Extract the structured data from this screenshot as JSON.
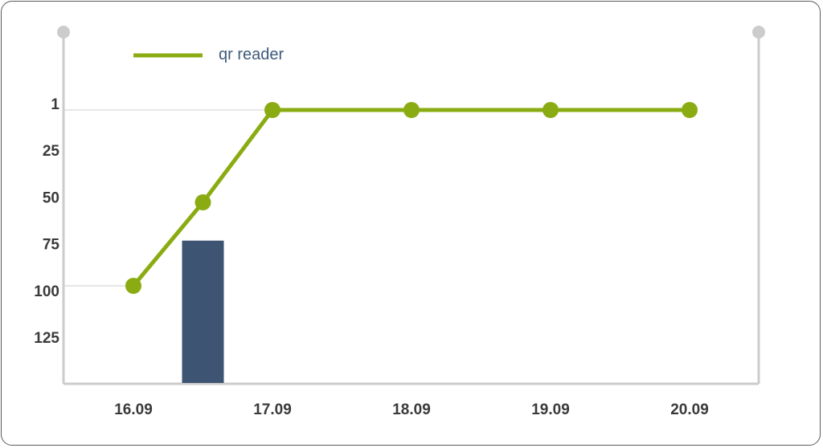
{
  "chart_data": {
    "type": "line",
    "categories": [
      "16.09",
      "17.09",
      "18.09",
      "19.09",
      "20.09"
    ],
    "y_ticks": [
      "1",
      "25",
      "50",
      "75",
      "100",
      "125"
    ],
    "y_reversed": true,
    "ylim": [
      1,
      125
    ],
    "grid_lines_at": [
      1,
      100
    ],
    "legend": {
      "position": "top-left",
      "label": "qr reader"
    },
    "series": [
      {
        "name": "qr reader",
        "x": [
          16.0,
          16.5,
          17.0,
          18.0,
          19.0,
          20.0
        ],
        "values": [
          100,
          53,
          1,
          1,
          1,
          1
        ],
        "color": "#8aac12"
      }
    ],
    "bars": [
      {
        "x": 16.5,
        "value": 75,
        "color": "#3d5572"
      }
    ],
    "axis_color": "#cccccc",
    "grid_color": "#cccccc"
  }
}
